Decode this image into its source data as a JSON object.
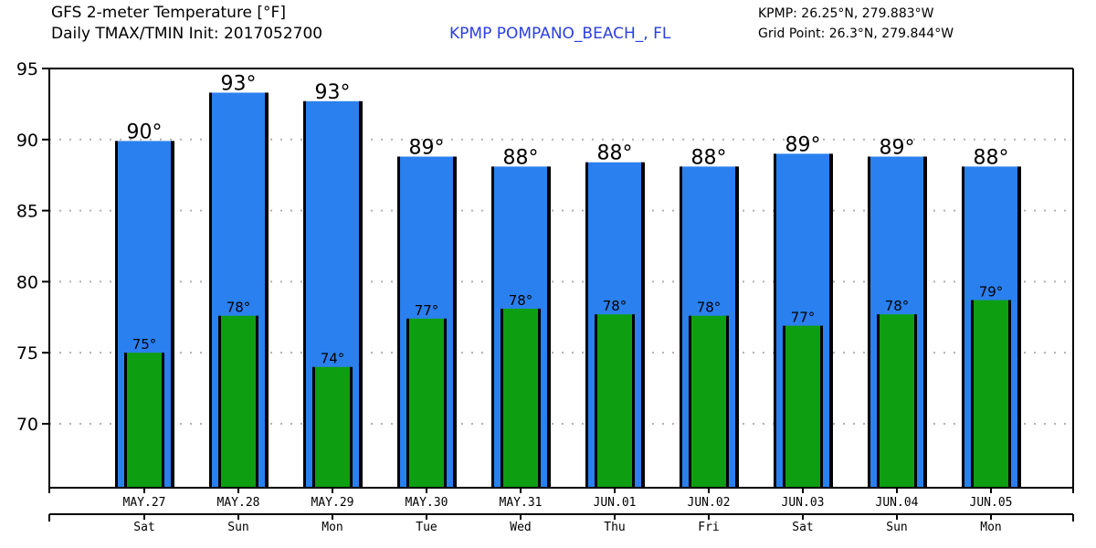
{
  "header": {
    "title_line1": "GFS 2-meter Temperature [°F]",
    "title_line2": "Daily TMAX/TMIN Init: 2017052700",
    "station": "KPMP POMPANO_BEACH_, FL",
    "station_coords": "KPMP: 26.25°N, 279.883°W",
    "grid_point": "Grid Point: 26.3°N, 279.844°W"
  },
  "colors": {
    "tmax_bar": "#2a80ee",
    "tmin_bar": "#0e9e12",
    "station_text": "#2a3fe0",
    "grid": "#b0b0b0"
  },
  "chart_data": {
    "type": "bar",
    "title": "GFS 2-meter Temperature [°F] — Daily TMAX/TMIN",
    "xlabel": "",
    "ylabel": "",
    "ylim": [
      65.5,
      95
    ],
    "yticks": [
      70,
      75,
      80,
      85,
      90,
      95
    ],
    "grid": true,
    "legend": "none",
    "categories": [
      "MAY.27",
      "MAY.28",
      "MAY.29",
      "MAY.30",
      "MAY.31",
      "JUN.01",
      "JUN.02",
      "JUN.03",
      "JUN.04",
      "JUN.05"
    ],
    "days": [
      "Sat",
      "Sun",
      "Mon",
      "Tue",
      "Wed",
      "Thu",
      "Fri",
      "Sat",
      "Sun",
      "Mon"
    ],
    "series": [
      {
        "name": "TMAX",
        "values": [
          89.9,
          93.3,
          92.7,
          88.8,
          88.1,
          88.4,
          88.1,
          89.0,
          88.8,
          88.1
        ],
        "labels": [
          "90°",
          "93°",
          "93°",
          "89°",
          "88°",
          "88°",
          "88°",
          "89°",
          "89°",
          "88°"
        ]
      },
      {
        "name": "TMIN",
        "values": [
          75.0,
          77.6,
          74.0,
          77.4,
          78.1,
          77.7,
          77.6,
          76.9,
          77.7,
          78.7
        ],
        "labels": [
          "75°",
          "78°",
          "74°",
          "77°",
          "78°",
          "78°",
          "78°",
          "77°",
          "78°",
          "79°"
        ]
      }
    ]
  }
}
